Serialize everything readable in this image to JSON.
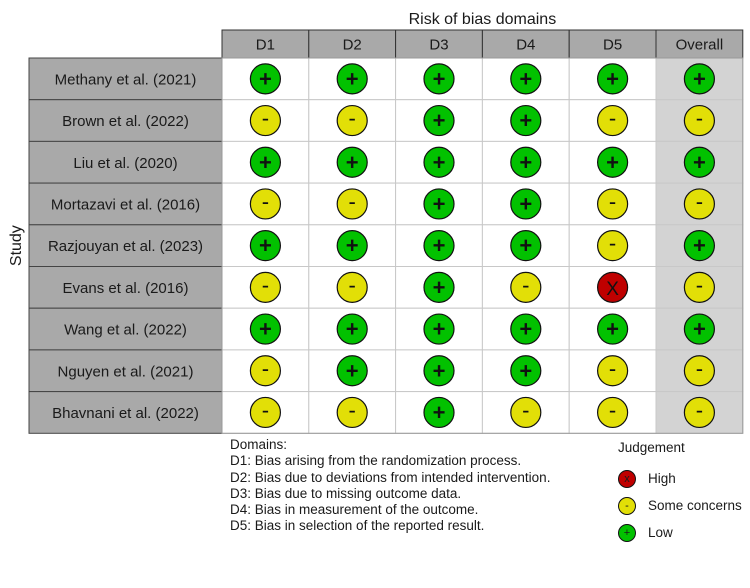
{
  "chart_data": {
    "type": "table",
    "title": "Risk of bias domains",
    "ylabel": "Study",
    "columns": [
      "D1",
      "D2",
      "D3",
      "D4",
      "D5",
      "Overall"
    ],
    "studies": [
      {
        "name": "Methany et al. (2021)",
        "judgements": [
          "low",
          "low",
          "low",
          "low",
          "low",
          "low"
        ]
      },
      {
        "name": "Brown et al. (2022)",
        "judgements": [
          "some",
          "some",
          "low",
          "low",
          "some",
          "some"
        ]
      },
      {
        "name": "Liu et al. (2020)",
        "judgements": [
          "low",
          "low",
          "low",
          "low",
          "low",
          "low"
        ]
      },
      {
        "name": "Mortazavi et al. (2016)",
        "judgements": [
          "some",
          "some",
          "low",
          "low",
          "some",
          "some"
        ]
      },
      {
        "name": "Razjouyan et al. (2023)",
        "judgements": [
          "low",
          "low",
          "low",
          "low",
          "some",
          "low"
        ]
      },
      {
        "name": "Evans et al. (2016)",
        "judgements": [
          "some",
          "some",
          "low",
          "some",
          "high",
          "some"
        ]
      },
      {
        "name": "Wang et al. (2022)",
        "judgements": [
          "low",
          "low",
          "low",
          "low",
          "low",
          "low"
        ]
      },
      {
        "name": "Nguyen et al. (2021)",
        "judgements": [
          "some",
          "low",
          "low",
          "low",
          "some",
          "some"
        ]
      },
      {
        "name": "Bhavnani et al. (2022)",
        "judgements": [
          "some",
          "some",
          "low",
          "some",
          "some",
          "some"
        ]
      }
    ],
    "judgement_symbols": {
      "low": "+",
      "some": "-",
      "high": "X"
    },
    "colors": {
      "low": "#02c100",
      "some": "#e2df07",
      "high": "#bf0000",
      "header": "#a9a9a9",
      "overall_bg": "#d3d3d3",
      "cell_bg": "#ffffff"
    },
    "domains_title": "Domains:",
    "domains": [
      "D1: Bias arising from the randomization process.",
      "D2: Bias due to deviations from intended intervention.",
      "D3: Bias due to missing outcome data.",
      "D4: Bias in measurement of the outcome.",
      "D5: Bias in selection of the reported result."
    ],
    "legend": {
      "title": "Judgement",
      "items": [
        {
          "key": "high",
          "label": "High",
          "symbol": "x"
        },
        {
          "key": "some",
          "label": "Some concerns",
          "symbol": "-"
        },
        {
          "key": "low",
          "label": "Low",
          "symbol": "+"
        }
      ]
    }
  }
}
